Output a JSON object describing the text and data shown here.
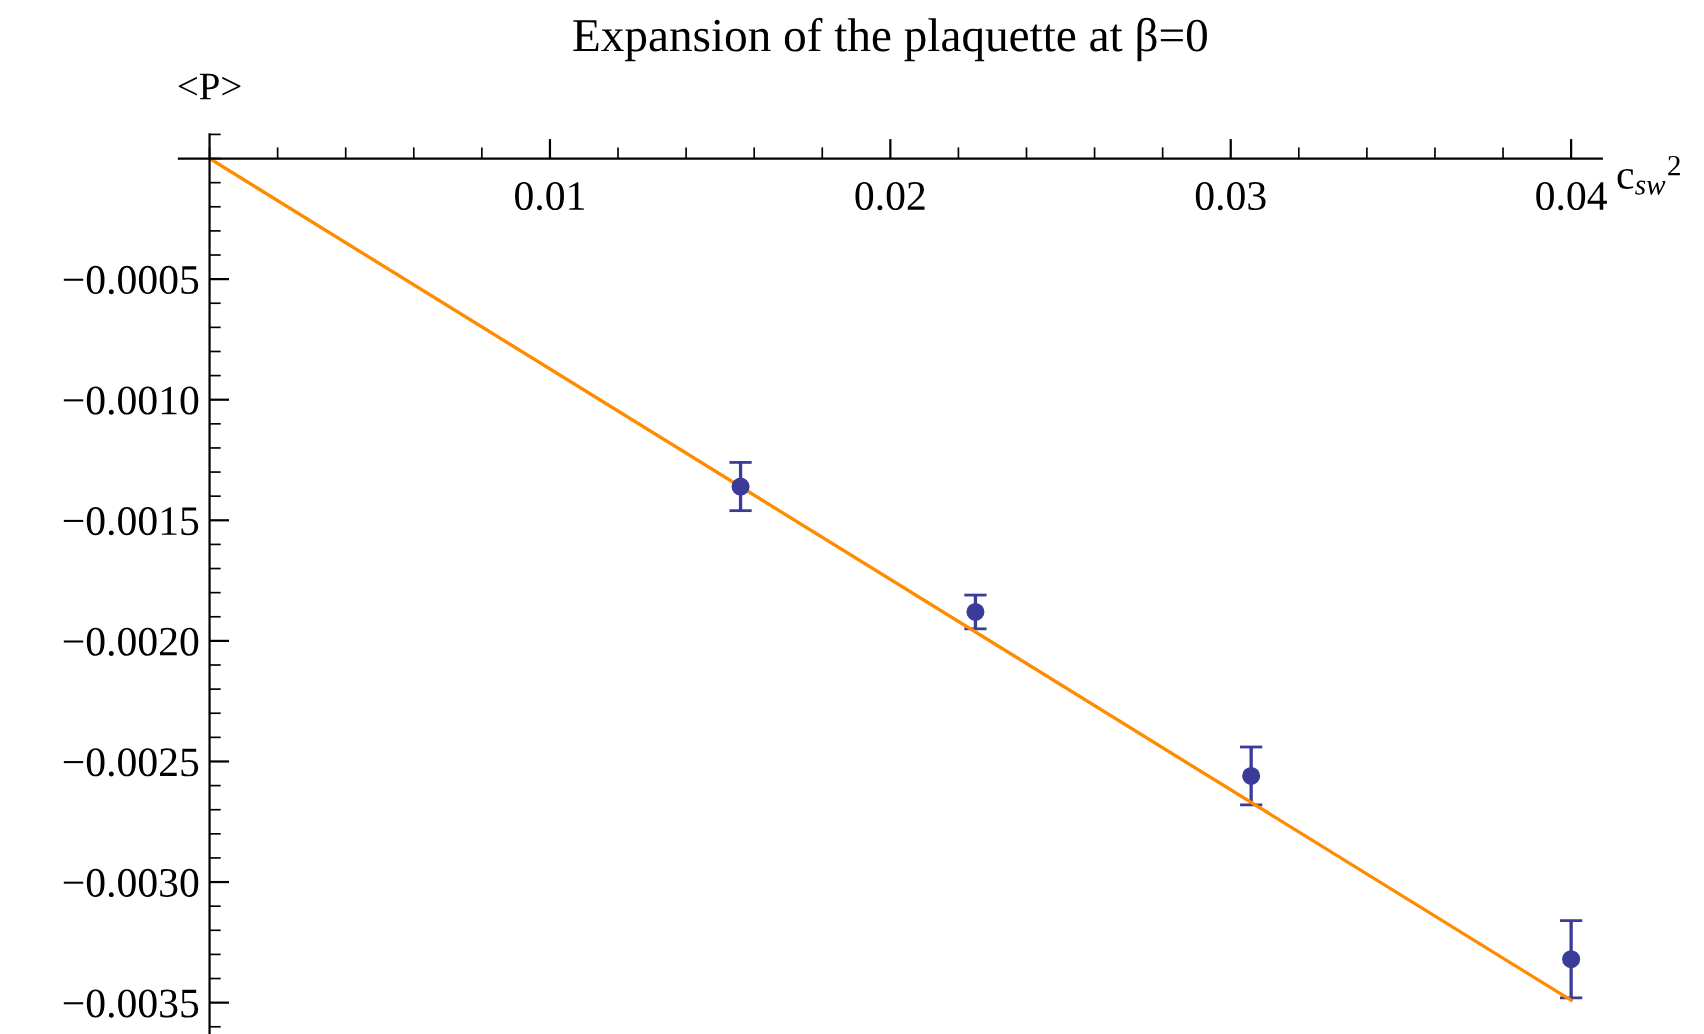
{
  "chart_data": {
    "type": "scatter",
    "title": "Expansion of the plaquette at β=0",
    "xlabel": "c$_{sw}$$^{2}$",
    "ylabel": "<P>",
    "x": [
      0.0156,
      0.0225,
      0.0306,
      0.04
    ],
    "series": [
      {
        "color": "#3b3b99",
        "marker": "circle",
        "values": [
          -0.00136,
          -0.00188,
          -0.00256,
          -0.00332
        ],
        "errors": [
          0.0001,
          7e-05,
          0.00012,
          0.00016
        ]
      },
      {
        "type": "line",
        "color": "#ff8c00",
        "x": [
          0,
          0.04
        ],
        "values": [
          0,
          -0.00349
        ]
      }
    ],
    "xlim": [
      -0.0009,
      0.0409
    ],
    "ylim": [
      -0.00363,
      0.0001
    ],
    "xticks": [
      0.01,
      0.02,
      0.03,
      0.04
    ],
    "yticks": [
      {
        "value": -0.0005,
        "label": "−0.0005"
      },
      {
        "value": -0.001,
        "label": "−0.0010"
      },
      {
        "value": -0.0015,
        "label": "−0.0015"
      },
      {
        "value": -0.002,
        "label": "−0.0020"
      },
      {
        "value": -0.0025,
        "label": "−0.0025"
      },
      {
        "value": -0.003,
        "label": "−0.0030"
      },
      {
        "value": -0.0035,
        "label": "−0.0035"
      }
    ],
    "grid": false
  }
}
